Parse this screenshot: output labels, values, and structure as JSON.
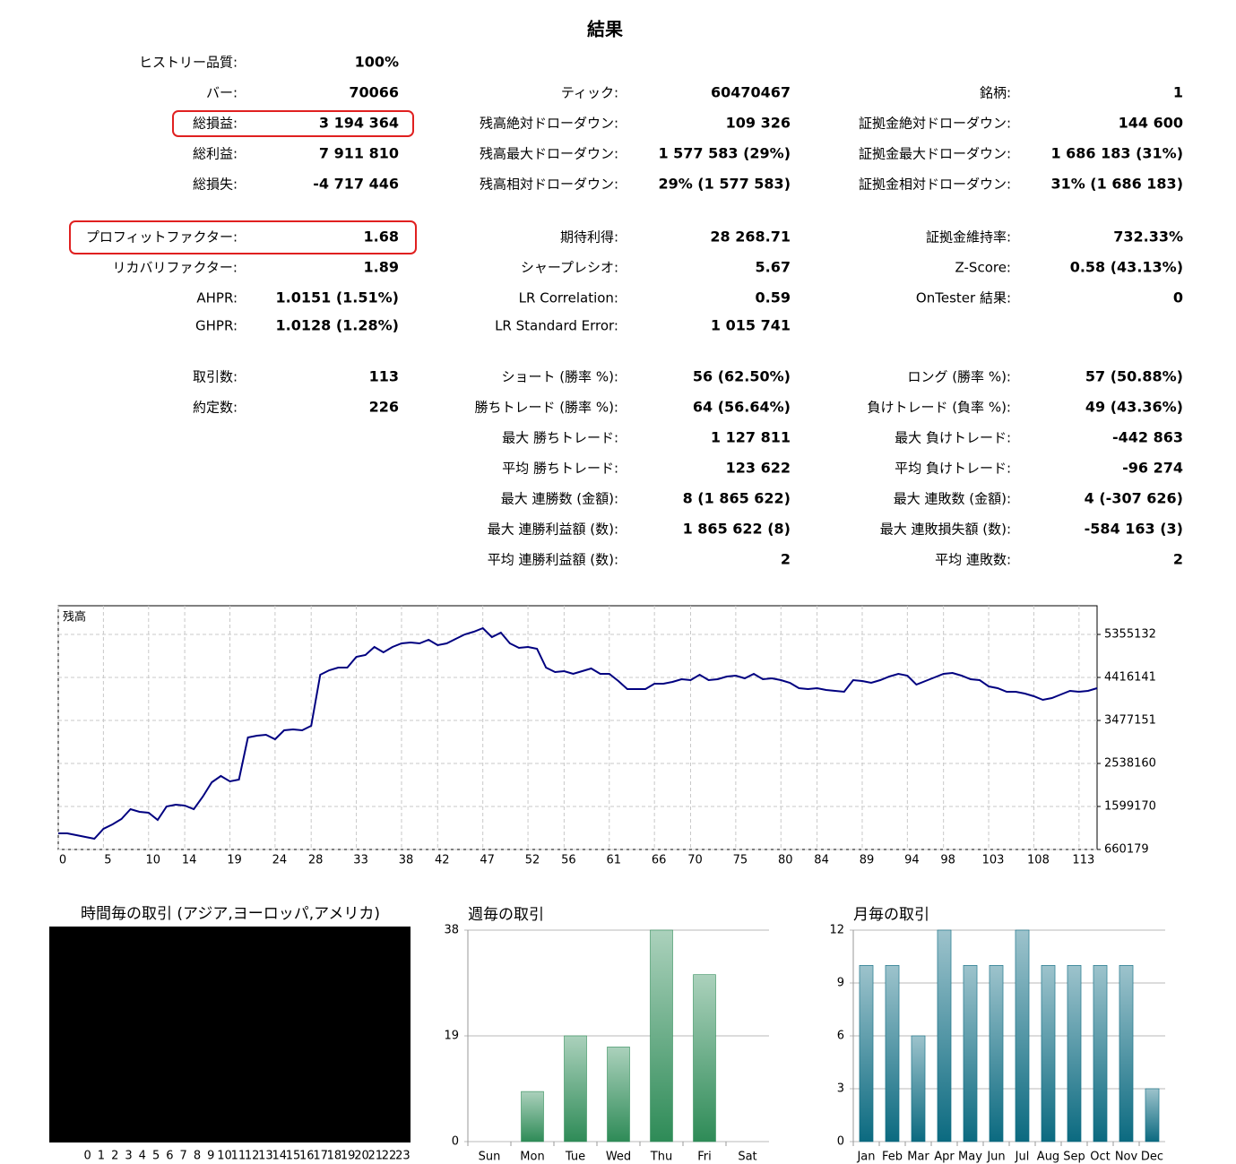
{
  "title": "結果",
  "stats": {
    "rows": [
      [
        {
          "label": "ヒストリー品質:",
          "value": "100%"
        },
        null,
        null
      ],
      [
        {
          "label": "バー:",
          "value": "70066"
        },
        {
          "label": "ティック:",
          "value": "60470467"
        },
        {
          "label": "銘柄:",
          "value": "1"
        }
      ],
      [
        {
          "label": "総損益:",
          "value": "3 194 364"
        },
        {
          "label": "残高絶対ドローダウン:",
          "value": "109 326"
        },
        {
          "label": "証拠金絶対ドローダウン:",
          "value": "144 600"
        }
      ],
      [
        {
          "label": "総利益:",
          "value": "7 911 810"
        },
        {
          "label": "残高最大ドローダウン:",
          "value": "1 577 583 (29%)"
        },
        {
          "label": "証拠金最大ドローダウン:",
          "value": "1 686 183 (31%)"
        }
      ],
      [
        {
          "label": "総損失:",
          "value": "-4 717 446"
        },
        {
          "label": "残高相対ドローダウン:",
          "value": "29% (1 577 583)"
        },
        {
          "label": "証拠金相対ドローダウン:",
          "value": "31% (1 686 183)"
        }
      ],
      [
        {
          "label": "プロフィットファクター:",
          "value": "1.68"
        },
        {
          "label": "期待利得:",
          "value": "28 268.71"
        },
        {
          "label": "証拠金維持率:",
          "value": "732.33%"
        }
      ],
      [
        {
          "label": "リカバリファクター:",
          "value": "1.89"
        },
        {
          "label": "シャープレシオ:",
          "value": "5.67"
        },
        {
          "label": "Z-Score:",
          "value": "0.58 (43.13%)"
        }
      ],
      [
        {
          "label": "AHPR:",
          "value": "1.0151 (1.51%)"
        },
        {
          "label": "LR Correlation:",
          "value": "0.59"
        },
        {
          "label": "OnTester 結果:",
          "value": "0"
        }
      ],
      [
        {
          "label": "GHPR:",
          "value": "1.0128 (1.28%)"
        },
        {
          "label": "LR Standard Error:",
          "value": "1 015 741"
        },
        null
      ],
      [
        {
          "label": "取引数:",
          "value": "113"
        },
        {
          "label": "ショート (勝率 %):",
          "value": "56 (62.50%)"
        },
        {
          "label": "ロング (勝率 %):",
          "value": "57 (50.88%)"
        }
      ],
      [
        {
          "label": "約定数:",
          "value": "226"
        },
        {
          "label": "勝ちトレード (勝率 %):",
          "value": "64 (56.64%)"
        },
        {
          "label": "負けトレード (負率 %):",
          "value": "49 (43.36%)"
        }
      ],
      [
        null,
        {
          "label": "最大 勝ちトレード:",
          "value": "1 127 811"
        },
        {
          "label": "最大 負けトレード:",
          "value": "-442 863"
        }
      ],
      [
        null,
        {
          "label": "平均 勝ちトレード:",
          "value": "123 622"
        },
        {
          "label": "平均 負けトレード:",
          "value": "-96 274"
        }
      ],
      [
        null,
        {
          "label": "最大 連勝数 (金額):",
          "value": "8 (1 865 622)"
        },
        {
          "label": "最大 連敗数 (金額):",
          "value": "4 (-307 626)"
        }
      ],
      [
        null,
        {
          "label": "最大 連勝利益額 (数):",
          "value": "1 865 622 (8)"
        },
        {
          "label": "最大 連敗損失額 (数):",
          "value": "-584 163 (3)"
        }
      ],
      [
        null,
        {
          "label": "平均 連勝利益額 (数):",
          "value": "2"
        },
        {
          "label": "平均 連敗数:",
          "value": "2"
        }
      ]
    ]
  },
  "chart_data": [
    {
      "type": "line",
      "x": [
        0,
        1,
        2,
        3,
        4,
        5,
        6,
        7,
        8,
        9,
        10,
        11,
        12,
        13,
        14,
        15,
        16,
        17,
        18,
        19,
        20,
        21,
        22,
        23,
        24,
        25,
        26,
        27,
        28,
        29,
        30,
        31,
        32,
        33,
        34,
        35,
        36,
        37,
        38,
        39,
        40,
        41,
        42,
        43,
        44,
        45,
        46,
        47,
        48,
        49,
        50,
        51,
        52,
        53,
        54,
        55,
        56,
        57,
        58,
        59,
        60,
        61,
        62,
        63,
        64,
        65,
        66,
        67,
        68,
        69,
        70,
        71,
        72,
        73,
        74,
        75,
        76,
        77,
        78,
        79,
        80,
        81,
        82,
        83,
        84,
        85,
        86,
        87,
        88,
        89,
        90,
        91,
        92,
        93,
        94,
        95,
        96,
        97,
        98,
        99,
        100,
        101,
        102,
        103,
        104,
        105,
        106,
        107,
        108,
        109,
        110,
        111,
        112,
        113,
        114,
        115
      ],
      "series": [
        {
          "name": "残高",
          "color": "#000080",
          "values": [
            1012000,
            1012000,
            973000,
            934000,
            895000,
            1110000,
            1208000,
            1325000,
            1540000,
            1482000,
            1462000,
            1306000,
            1599000,
            1638000,
            1619000,
            1540000,
            1814000,
            2127000,
            2264000,
            2147000,
            2186000,
            3105000,
            3144000,
            3164000,
            3066000,
            3262000,
            3281000,
            3262000,
            3360000,
            4475000,
            4572000,
            4631000,
            4631000,
            4866000,
            4905000,
            5081000,
            4964000,
            5081000,
            5159000,
            5179000,
            5159000,
            5238000,
            5120000,
            5159000,
            5257000,
            5355000,
            5414000,
            5492000,
            5296000,
            5394000,
            5159000,
            5061000,
            5081000,
            5042000,
            4631000,
            4533000,
            4553000,
            4494000,
            4553000,
            4612000,
            4494000,
            4494000,
            4338000,
            4162000,
            4162000,
            4162000,
            4279000,
            4279000,
            4318000,
            4377000,
            4357000,
            4475000,
            4357000,
            4377000,
            4435000,
            4455000,
            4396000,
            4494000,
            4377000,
            4396000,
            4357000,
            4299000,
            4181000,
            4162000,
            4181000,
            4142000,
            4122000,
            4103000,
            4357000,
            4338000,
            4299000,
            4357000,
            4435000,
            4494000,
            4455000,
            4259000,
            4338000,
            4416000,
            4494000,
            4514000,
            4455000,
            4377000,
            4357000,
            4220000,
            4181000,
            4103000,
            4103000,
            4064000,
            4005000,
            3927000,
            3966000,
            4044000,
            4122000,
            4103000,
            4122000,
            4181000
          ]
        }
      ],
      "xlim": [
        0,
        115
      ],
      "xticks": [
        0,
        5,
        10,
        14,
        19,
        24,
        28,
        33,
        38,
        42,
        47,
        52,
        56,
        61,
        66,
        70,
        75,
        80,
        84,
        89,
        94,
        98,
        103,
        108,
        113
      ],
      "ylim": [
        660179,
        5981000
      ],
      "yticks": [
        660179,
        1599170,
        2538160,
        3477151,
        4416141,
        5355132
      ],
      "grid": true
    },
    {
      "type": "bar",
      "title": "時間毎の取引 (アジア,ヨーロッパ,アメリカ)",
      "categories": [
        "0",
        "1",
        "2",
        "3",
        "4",
        "5",
        "6",
        "7",
        "8",
        "9",
        "10",
        "11",
        "12",
        "13",
        "14",
        "15",
        "16",
        "17",
        "18",
        "19",
        "20",
        "21",
        "22",
        "23"
      ]
    },
    {
      "type": "bar",
      "title": "週毎の取引",
      "categories": [
        "Sun",
        "Mon",
        "Tue",
        "Wed",
        "Thu",
        "Fri",
        "Sat"
      ],
      "values": [
        0,
        9,
        19,
        17,
        38,
        30,
        0
      ],
      "color": "#2e8b57",
      "ylim": [
        0,
        38
      ],
      "yticks": [
        0,
        19,
        38
      ],
      "grid": true
    },
    {
      "type": "bar",
      "title": "月毎の取引",
      "categories": [
        "Jan",
        "Feb",
        "Mar",
        "Apr",
        "May",
        "Jun",
        "Jul",
        "Aug",
        "Sep",
        "Oct",
        "Nov",
        "Dec"
      ],
      "values": [
        10,
        10,
        6,
        12,
        10,
        10,
        12,
        10,
        10,
        10,
        10,
        3
      ],
      "color": "#0b6a80",
      "ylim": [
        0,
        12
      ],
      "yticks": [
        0,
        3,
        6,
        9,
        12
      ],
      "grid": true
    }
  ]
}
